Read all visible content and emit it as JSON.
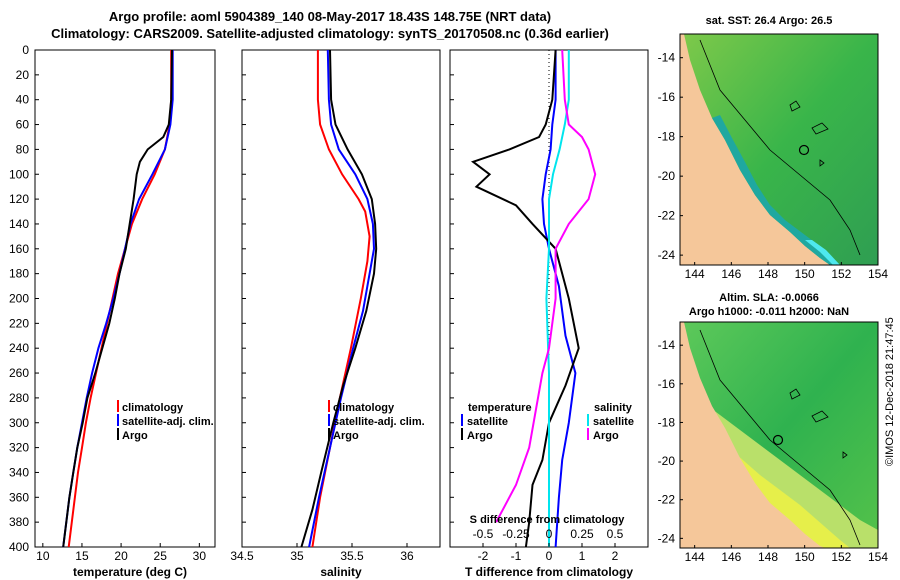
{
  "title_line1": "Argo profile: aoml 5904389_140 08-May-2017 18.43S 148.75E (NRT data)",
  "title_line2": "Climatology: CARS2009. Satellite-adjusted climatology: synTS_20170508.nc (0.36d earlier)",
  "watermark": "©IMOS 12-Dec-2018 21:47:45",
  "colors": {
    "climatology": "#ff0000",
    "satellite": "#0000ff",
    "argo": "#000000",
    "sat_salinity": "#00e5ee",
    "argo_salinity": "#ff00ff",
    "land": "#f5c79a"
  },
  "chart_data": [
    {
      "type": "line",
      "name": "temperature",
      "xlabel": "temperature (deg C)",
      "xlim": [
        9,
        32
      ],
      "xticks": [
        10,
        15,
        20,
        25,
        30
      ],
      "ylabel": "depth",
      "ylim": [
        0,
        400
      ],
      "yticks": [
        0,
        20,
        40,
        60,
        80,
        100,
        120,
        140,
        160,
        180,
        200,
        220,
        240,
        260,
        280,
        300,
        320,
        340,
        360,
        380,
        400
      ],
      "legend": [
        "climatology",
        "satellite-adj. clim.",
        "Argo"
      ],
      "series": [
        {
          "name": "climatology",
          "color": "red",
          "points": [
            [
              26.4,
              0
            ],
            [
              26.4,
              40
            ],
            [
              26.2,
              60
            ],
            [
              25.6,
              80
            ],
            [
              24.3,
              100
            ],
            [
              22.7,
              120
            ],
            [
              21.4,
              140
            ],
            [
              20.5,
              160
            ],
            [
              19.6,
              180
            ],
            [
              18.9,
              200
            ],
            [
              18.2,
              220
            ],
            [
              17.5,
              240
            ],
            [
              16.8,
              260
            ],
            [
              16.1,
              280
            ],
            [
              15.5,
              300
            ],
            [
              15.0,
              320
            ],
            [
              14.5,
              340
            ],
            [
              14.1,
              360
            ],
            [
              13.7,
              380
            ],
            [
              13.3,
              400
            ]
          ]
        },
        {
          "name": "satellite-adj. clim.",
          "color": "blue",
          "points": [
            [
              26.6,
              0
            ],
            [
              26.6,
              40
            ],
            [
              26.3,
              60
            ],
            [
              25.6,
              80
            ],
            [
              24.0,
              100
            ],
            [
              22.3,
              120
            ],
            [
              21.2,
              140
            ],
            [
              20.5,
              160
            ],
            [
              19.8,
              180
            ],
            [
              19.0,
              200
            ],
            [
              18.1,
              220
            ],
            [
              17.1,
              240
            ],
            [
              16.3,
              260
            ],
            [
              15.6,
              280
            ],
            [
              15.0,
              300
            ],
            [
              14.4,
              320
            ],
            [
              13.9,
              340
            ],
            [
              13.4,
              360
            ],
            [
              13.0,
              380
            ],
            [
              12.6,
              400
            ]
          ]
        },
        {
          "name": "Argo",
          "color": "black",
          "points": [
            [
              26.5,
              0
            ],
            [
              26.4,
              40
            ],
            [
              26.1,
              60
            ],
            [
              25.4,
              70
            ],
            [
              23.4,
              80
            ],
            [
              22.4,
              90
            ],
            [
              22.0,
              100
            ],
            [
              21.6,
              120
            ],
            [
              21.1,
              140
            ],
            [
              20.6,
              160
            ],
            [
              19.8,
              180
            ],
            [
              19.2,
              200
            ],
            [
              18.5,
              220
            ],
            [
              17.6,
              240
            ],
            [
              16.7,
              260
            ],
            [
              15.7,
              280
            ],
            [
              15.1,
              300
            ],
            [
              14.4,
              320
            ],
            [
              13.9,
              340
            ],
            [
              13.4,
              360
            ],
            [
              13.0,
              380
            ],
            [
              12.6,
              400
            ]
          ]
        }
      ]
    },
    {
      "type": "line",
      "name": "salinity",
      "xlabel": "salinity",
      "xlim": [
        34.5,
        36.3
      ],
      "xticks": [
        34.5,
        35,
        35.5,
        36
      ],
      "ylim": [
        0,
        400
      ],
      "legend": [
        "climatology",
        "satellite-adj. clim.",
        "Argo"
      ],
      "series": [
        {
          "name": "climatology",
          "color": "red",
          "points": [
            [
              35.19,
              0
            ],
            [
              35.19,
              40
            ],
            [
              35.21,
              60
            ],
            [
              35.29,
              80
            ],
            [
              35.41,
              100
            ],
            [
              35.56,
              120
            ],
            [
              35.62,
              130
            ],
            [
              35.66,
              150
            ],
            [
              35.64,
              170
            ],
            [
              35.58,
              200
            ],
            [
              35.49,
              240
            ],
            [
              35.39,
              280
            ],
            [
              35.3,
              320
            ],
            [
              35.21,
              360
            ],
            [
              35.14,
              400
            ]
          ]
        },
        {
          "name": "satellite-adj. clim.",
          "color": "blue",
          "points": [
            [
              35.28,
              0
            ],
            [
              35.29,
              40
            ],
            [
              35.31,
              60
            ],
            [
              35.38,
              80
            ],
            [
              35.53,
              100
            ],
            [
              35.64,
              120
            ],
            [
              35.69,
              140
            ],
            [
              35.7,
              160
            ],
            [
              35.66,
              180
            ],
            [
              35.6,
              210
            ],
            [
              35.51,
              240
            ],
            [
              35.4,
              280
            ],
            [
              35.3,
              320
            ],
            [
              35.2,
              360
            ],
            [
              35.11,
              400
            ]
          ]
        },
        {
          "name": "Argo",
          "color": "black",
          "points": [
            [
              35.3,
              0
            ],
            [
              35.31,
              40
            ],
            [
              35.35,
              60
            ],
            [
              35.46,
              80
            ],
            [
              35.59,
              100
            ],
            [
              35.68,
              120
            ],
            [
              35.71,
              140
            ],
            [
              35.72,
              160
            ],
            [
              35.7,
              180
            ],
            [
              35.63,
              210
            ],
            [
              35.53,
              240
            ],
            [
              35.42,
              270
            ],
            [
              35.33,
              300
            ],
            [
              35.22,
              340
            ],
            [
              35.14,
              370
            ],
            [
              35.04,
              400
            ]
          ]
        }
      ]
    },
    {
      "type": "line",
      "name": "difference",
      "xlabel": "T difference from climatology",
      "xlim": [
        -3,
        3
      ],
      "xticks": [
        -2,
        -1,
        0,
        1,
        2
      ],
      "s_label": "S difference from climatology",
      "s_xlim": [
        -0.75,
        0.75
      ],
      "s_xticks": [
        "-0.5",
        "-0.25",
        "0",
        "0.25",
        "0.5"
      ],
      "ylim": [
        0,
        400
      ],
      "legend_temperature": {
        "title": "temperature",
        "items": [
          "satellite",
          "Argo"
        ]
      },
      "legend_salinity": {
        "title": "salinity",
        "items": [
          "satellite",
          "Argo"
        ]
      },
      "series": [
        {
          "name": "T satellite",
          "color": "blue",
          "points": [
            [
              0.2,
              0
            ],
            [
              0.2,
              40
            ],
            [
              0.1,
              60
            ],
            [
              0.05,
              80
            ],
            [
              -0.1,
              100
            ],
            [
              -0.2,
              120
            ],
            [
              -0.15,
              140
            ],
            [
              0,
              160
            ],
            [
              0.3,
              190
            ],
            [
              0.5,
              230
            ],
            [
              0.8,
              260
            ],
            [
              0.6,
              300
            ],
            [
              0.4,
              330
            ],
            [
              0.3,
              360
            ],
            [
              0.2,
              400
            ]
          ]
        },
        {
          "name": "T Argo",
          "color": "black",
          "points": [
            [
              0.2,
              0
            ],
            [
              0.1,
              40
            ],
            [
              -0.1,
              60
            ],
            [
              -0.3,
              70
            ],
            [
              -1.2,
              80
            ],
            [
              -2.3,
              90
            ],
            [
              -1.8,
              100
            ],
            [
              -2.2,
              110
            ],
            [
              -1.0,
              125
            ],
            [
              -0.5,
              140
            ],
            [
              0.2,
              160
            ],
            [
              0.4,
              180
            ],
            [
              0.6,
              200
            ],
            [
              0.9,
              240
            ],
            [
              0.5,
              270
            ],
            [
              0.0,
              300
            ],
            [
              -0.2,
              330
            ],
            [
              -0.5,
              350
            ],
            [
              -0.6,
              380
            ],
            [
              -0.7,
              400
            ]
          ]
        },
        {
          "name": "S satellite",
          "color": "cyan",
          "points": [
            [
              0.15,
              0
            ],
            [
              0.15,
              40
            ],
            [
              0.12,
              60
            ],
            [
              0.08,
              80
            ],
            [
              0.03,
              100
            ],
            [
              0,
              120
            ],
            [
              0,
              160
            ],
            [
              -0.02,
              200
            ],
            [
              0,
              260
            ],
            [
              0,
              300
            ],
            [
              0,
              340
            ],
            [
              0,
              400
            ]
          ]
        },
        {
          "name": "S Argo",
          "color": "magenta",
          "points": [
            [
              0.1,
              0
            ],
            [
              0.12,
              40
            ],
            [
              0.15,
              60
            ],
            [
              0.25,
              70
            ],
            [
              0.3,
              80
            ],
            [
              0.35,
              100
            ],
            [
              0.3,
              120
            ],
            [
              0.15,
              140
            ],
            [
              0.05,
              160
            ],
            [
              0.05,
              200
            ],
            [
              0.0,
              240
            ],
            [
              -0.05,
              260
            ],
            [
              -0.1,
              290
            ],
            [
              -0.15,
              320
            ],
            [
              -0.25,
              350
            ],
            [
              -0.35,
              370
            ],
            [
              -0.4,
              380
            ]
          ]
        }
      ]
    },
    {
      "type": "map",
      "name": "SST map",
      "title": "sat. SST: 26.4 Argo: 26.5",
      "xlim": [
        143.2,
        154
      ],
      "xticks": [
        144,
        146,
        148,
        150,
        152,
        154
      ],
      "ylim": [
        -24.5,
        -12.8
      ],
      "yticks": [
        -14,
        -16,
        -18,
        -20,
        -22,
        -24
      ],
      "argo_position": [
        148.75,
        -18.43
      ]
    },
    {
      "type": "map",
      "name": "SLA map",
      "title1": "Altim. SLA: -0.0066",
      "title2": "Argo h1000: -0.011 h2000: NaN",
      "xlim": [
        143.2,
        154
      ],
      "xticks": [
        144,
        146,
        148,
        150,
        152,
        154
      ],
      "ylim": [
        -24.5,
        -12.8
      ],
      "yticks": [
        -14,
        -16,
        -18,
        -20,
        -22,
        -24
      ],
      "argo_position": [
        148.75,
        -18.43
      ]
    }
  ]
}
